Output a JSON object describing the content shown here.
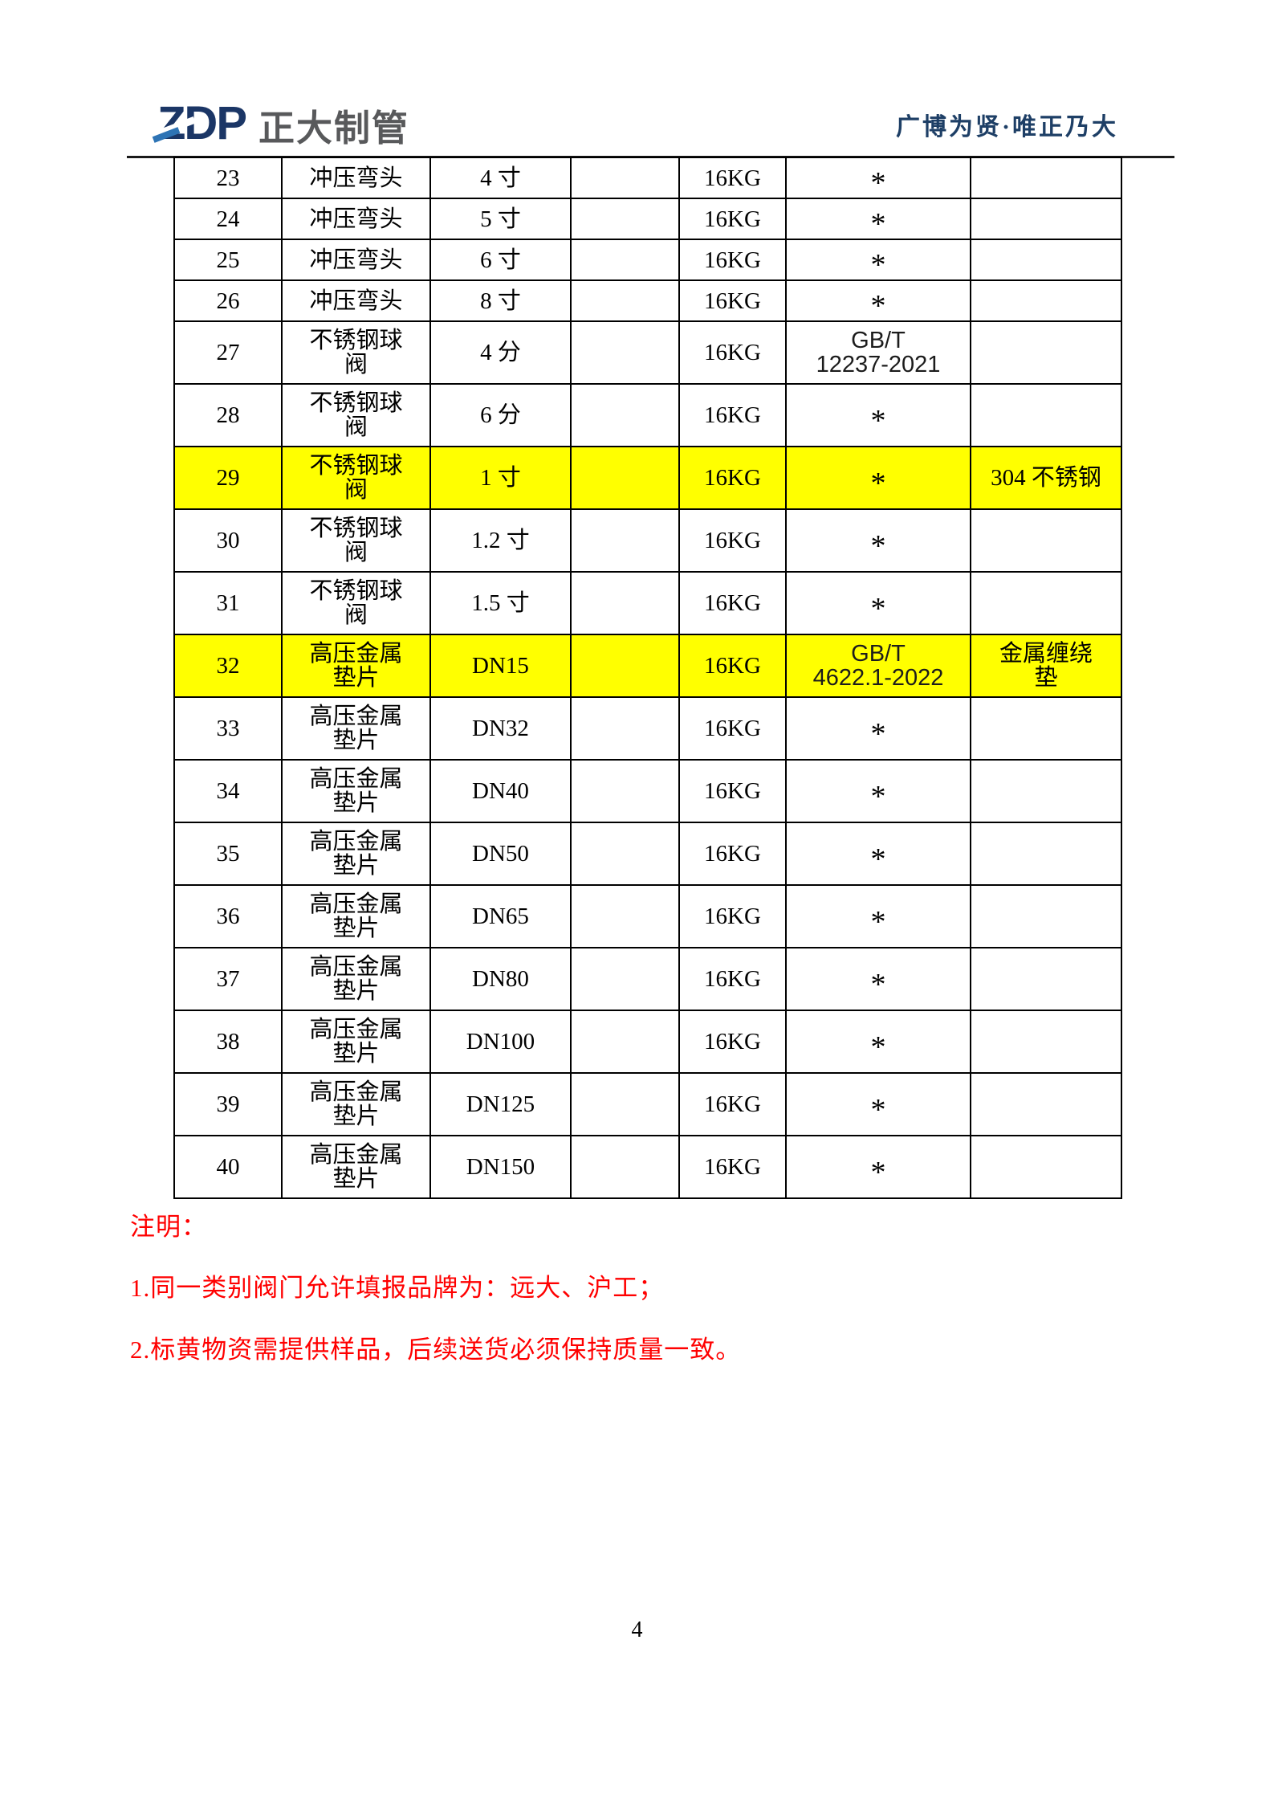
{
  "header": {
    "logo_text": "ZDP",
    "company_name": "正大制管",
    "slogan": "广博为贤·唯正乃大",
    "colors": {
      "logo_navy": "#1b3666",
      "logo_accent": "#2e74b5",
      "company_gray": "#58595b",
      "slogan_navy": "#1e3f66"
    }
  },
  "table": {
    "highlight_color": "#ffff00",
    "rows": [
      {
        "no": "23",
        "name": "冲压弯头",
        "size": "4 寸",
        "spec": "",
        "pressure": "16KG",
        "standard": "*",
        "remark": "",
        "highlighted": false
      },
      {
        "no": "24",
        "name": "冲压弯头",
        "size": "5 寸",
        "spec": "",
        "pressure": "16KG",
        "standard": "*",
        "remark": "",
        "highlighted": false
      },
      {
        "no": "25",
        "name": "冲压弯头",
        "size": "6 寸",
        "spec": "",
        "pressure": "16KG",
        "standard": "*",
        "remark": "",
        "highlighted": false
      },
      {
        "no": "26",
        "name": "冲压弯头",
        "size": "8 寸",
        "spec": "",
        "pressure": "16KG",
        "standard": "*",
        "remark": "",
        "highlighted": false
      },
      {
        "no": "27",
        "name": "不锈钢球\n阀",
        "size": "4 分",
        "spec": "",
        "pressure": "16KG",
        "standard": "GB/T\n12237-2021",
        "remark": "",
        "highlighted": false
      },
      {
        "no": "28",
        "name": "不锈钢球\n阀",
        "size": "6 分",
        "spec": "",
        "pressure": "16KG",
        "standard": "*",
        "remark": "",
        "highlighted": false
      },
      {
        "no": "29",
        "name": "不锈钢球\n阀",
        "size": "1 寸",
        "spec": "",
        "pressure": "16KG",
        "standard": "*",
        "remark": "304 不锈钢",
        "highlighted": true
      },
      {
        "no": "30",
        "name": "不锈钢球\n阀",
        "size": "1.2 寸",
        "spec": "",
        "pressure": "16KG",
        "standard": "*",
        "remark": "",
        "highlighted": false
      },
      {
        "no": "31",
        "name": "不锈钢球\n阀",
        "size": "1.5 寸",
        "spec": "",
        "pressure": "16KG",
        "standard": "*",
        "remark": "",
        "highlighted": false
      },
      {
        "no": "32",
        "name": "高压金属\n垫片",
        "size": "DN15",
        "spec": "",
        "pressure": "16KG",
        "standard": "GB/T\n4622.1-2022",
        "remark": "金属缠绕\n垫",
        "highlighted": true
      },
      {
        "no": "33",
        "name": "高压金属\n垫片",
        "size": "DN32",
        "spec": "",
        "pressure": "16KG",
        "standard": "*",
        "remark": "",
        "highlighted": false
      },
      {
        "no": "34",
        "name": "高压金属\n垫片",
        "size": "DN40",
        "spec": "",
        "pressure": "16KG",
        "standard": "*",
        "remark": "",
        "highlighted": false
      },
      {
        "no": "35",
        "name": "高压金属\n垫片",
        "size": "DN50",
        "spec": "",
        "pressure": "16KG",
        "standard": "*",
        "remark": "",
        "highlighted": false
      },
      {
        "no": "36",
        "name": "高压金属\n垫片",
        "size": "DN65",
        "spec": "",
        "pressure": "16KG",
        "standard": "*",
        "remark": "",
        "highlighted": false
      },
      {
        "no": "37",
        "name": "高压金属\n垫片",
        "size": "DN80",
        "spec": "",
        "pressure": "16KG",
        "standard": "*",
        "remark": "",
        "highlighted": false
      },
      {
        "no": "38",
        "name": "高压金属\n垫片",
        "size": "DN100",
        "spec": "",
        "pressure": "16KG",
        "standard": "*",
        "remark": "",
        "highlighted": false
      },
      {
        "no": "39",
        "name": "高压金属\n垫片",
        "size": "DN125",
        "spec": "",
        "pressure": "16KG",
        "standard": "*",
        "remark": "",
        "highlighted": false
      },
      {
        "no": "40",
        "name": "高压金属\n垫片",
        "size": "DN150",
        "spec": "",
        "pressure": "16KG",
        "standard": "*",
        "remark": "",
        "highlighted": false
      }
    ]
  },
  "notes": {
    "color": "#ff0000",
    "title": "注明：",
    "items": [
      "1.同一类别阀门允许填报品牌为：远大、沪工；",
      "2.标黄物资需提供样品，后续送货必须保持质量一致。"
    ]
  },
  "footer": {
    "page_number": "4"
  }
}
